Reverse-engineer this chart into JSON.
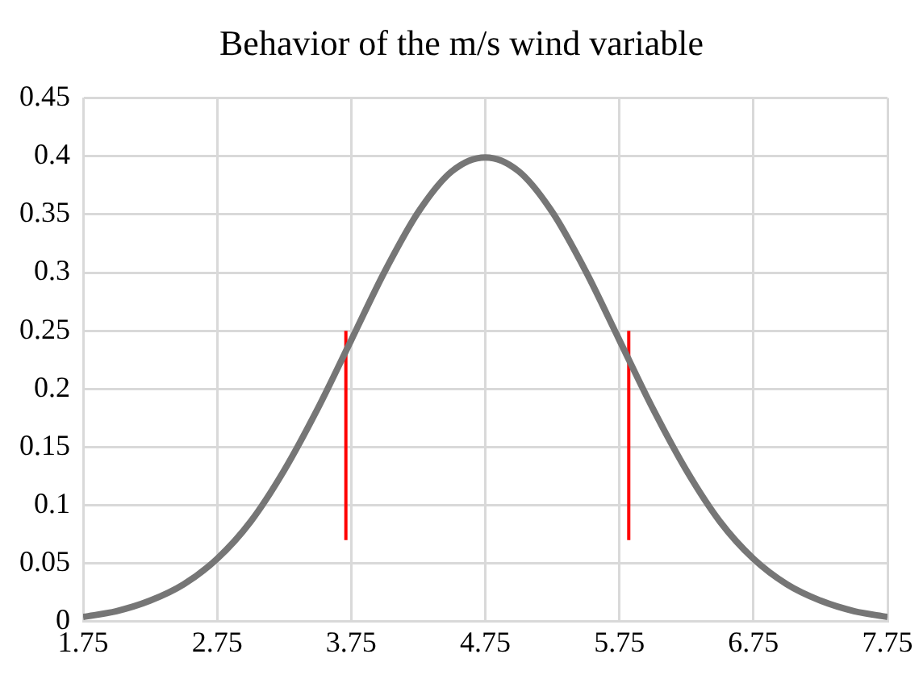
{
  "chart_data": {
    "type": "line",
    "title": "Behavior of the m/s wind variable",
    "series": [
      {
        "color": "#767676",
        "x": [
          1.75,
          2,
          2.25,
          2.5,
          2.75,
          3,
          3.25,
          3.5,
          3.75,
          4,
          4.25,
          4.5,
          4.75,
          5,
          5.25,
          5.5,
          5.75,
          6,
          6.25,
          6.5,
          6.75,
          7,
          7.25,
          7.5,
          7.75
        ],
        "values": [
          0.004,
          0.009,
          0.018,
          0.032,
          0.054,
          0.086,
          0.13,
          0.183,
          0.242,
          0.301,
          0.352,
          0.387,
          0.399,
          0.387,
          0.352,
          0.301,
          0.242,
          0.183,
          0.13,
          0.086,
          0.054,
          0.032,
          0.018,
          0.009,
          0.004
        ]
      },
      {
        "color": "#ff0000",
        "x": [
          3.71,
          3.71
        ],
        "values": [
          0.07,
          0.25
        ]
      },
      {
        "color": "#ff0000",
        "x": [
          5.82,
          5.82
        ],
        "values": [
          0.07,
          0.25
        ]
      }
    ],
    "xlim": [
      1.75,
      7.75
    ],
    "xticks": [
      1.75,
      2.75,
      3.75,
      4.75,
      5.75,
      6.75,
      7.75
    ],
    "ylim": [
      0,
      0.45
    ],
    "yticks": [
      0,
      0.05,
      0.1,
      0.15,
      0.2,
      0.25,
      0.3,
      0.35,
      0.4,
      0.45
    ],
    "grid": true,
    "legend": false,
    "marker": "none"
  }
}
